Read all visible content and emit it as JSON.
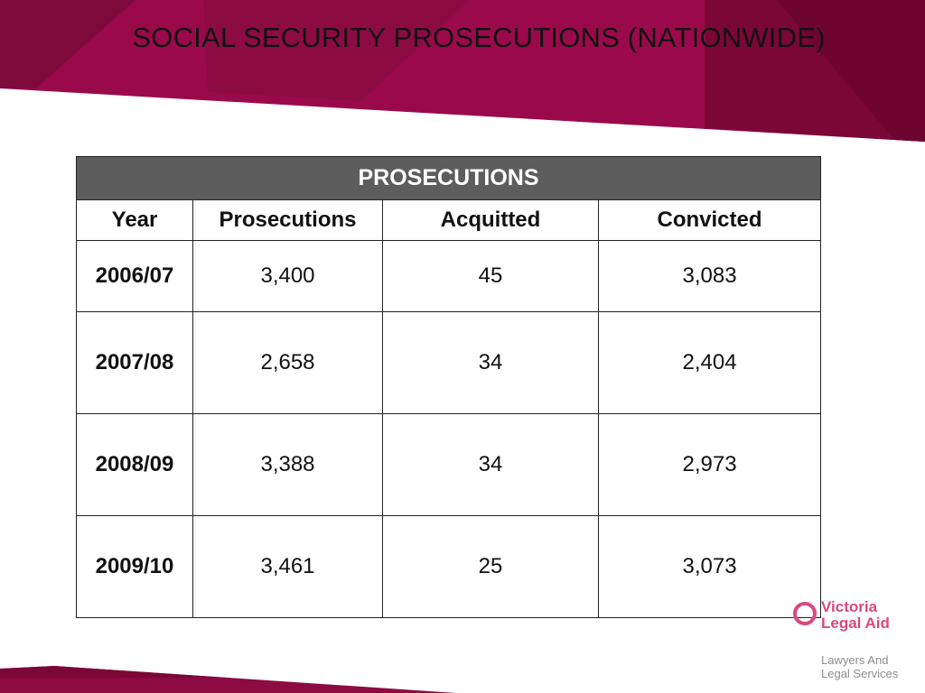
{
  "slide": {
    "title": "SOCIAL SECURITY PROSECUTIONS (NATIONWIDE)"
  },
  "colors": {
    "band_dark": "#6e0530",
    "band_mid": "#8c0b43",
    "band_main": "#9a0a4b",
    "table_banner": "#5d5d5d",
    "logo_pink": "#d9487f",
    "logo_grey": "#8c8c8c"
  },
  "table": {
    "banner": "PROSECUTIONS",
    "headers": [
      "Year",
      "Prosecutions",
      "Acquitted",
      "Convicted"
    ],
    "rows": [
      [
        "2006/07",
        "3,400",
        "45",
        "3,083"
      ],
      [
        "2007/08",
        "2,658",
        "34",
        "2,404"
      ],
      [
        "2008/09",
        "3,388",
        "34",
        "2,973"
      ],
      [
        "2009/10",
        "3,461",
        "25",
        "3,073"
      ]
    ]
  },
  "logo": {
    "name_line1": "Victoria",
    "name_line2": "Legal Aid",
    "tag_line1": "Lawyers And",
    "tag_line2": "Legal Services",
    "icon": "ring-icon"
  }
}
